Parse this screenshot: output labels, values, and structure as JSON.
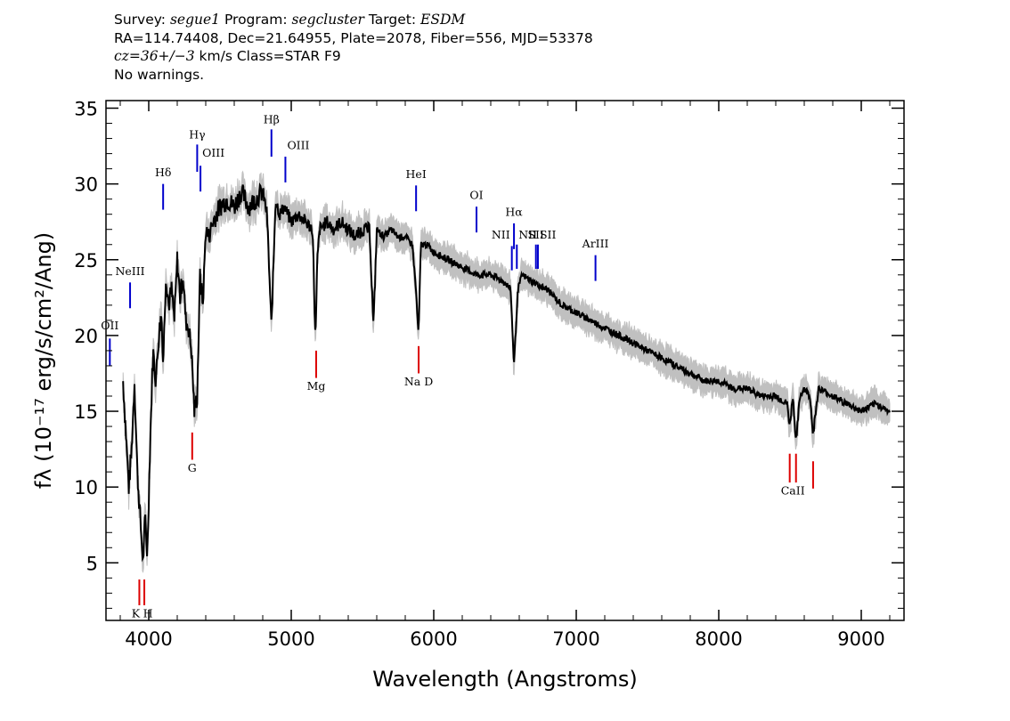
{
  "header": {
    "line1": {
      "survey_key": "Survey:",
      "survey_value": "segue1",
      "program_key": "Program:",
      "program_value": "segcluster",
      "target_key": "Target:",
      "target_value": "ESDM"
    },
    "line2": "RA=114.74408, Dec=21.64955, Plate=2078, Fiber=556, MJD=53378",
    "line3": {
      "cz_value": "cz=36+/−3",
      "cz_rest": " km/s Class=STAR F9"
    },
    "line4": "No warnings."
  },
  "chart_data": {
    "type": "line",
    "xlabel": "Wavelength (Angstroms)",
    "ylabel": "fλ (10⁻¹⁷ erg/s/cm²/Ang)",
    "xlim": [
      3700,
      9300
    ],
    "ylim": [
      1.2,
      35.5
    ],
    "x_ticks": [
      4000,
      5000,
      6000,
      7000,
      8000,
      9000
    ],
    "y_ticks": [
      5,
      10,
      15,
      20,
      25,
      30,
      35
    ],
    "grid": false,
    "colors": {
      "flux": "#000000",
      "error": "#c0c0c0",
      "emission": "#0000cc",
      "absorption": "#dd0000"
    },
    "series": [
      {
        "role": "flux",
        "x": [
          3820,
          3840,
          3860,
          3880,
          3900,
          3920,
          3940,
          3960,
          3975,
          3990,
          4010,
          4030,
          4050,
          4070,
          4090,
          4101,
          4120,
          4140,
          4160,
          4180,
          4200,
          4220,
          4240,
          4260,
          4280,
          4300,
          4320,
          4340,
          4360,
          4380,
          4400,
          4420,
          4450,
          4500,
          4550,
          4600,
          4650,
          4700,
          4750,
          4800,
          4830,
          4861,
          4890,
          4920,
          4950,
          5000,
          5050,
          5100,
          5150,
          5170,
          5183,
          5200,
          5250,
          5300,
          5350,
          5400,
          5450,
          5500,
          5550,
          5577,
          5600,
          5650,
          5700,
          5750,
          5800,
          5850,
          5875,
          5893,
          5910,
          5950,
          6000,
          6100,
          6200,
          6300,
          6400,
          6500,
          6540,
          6563,
          6590,
          6620,
          6700,
          6800,
          6900,
          7000,
          7100,
          7200,
          7300,
          7400,
          7500,
          7600,
          7700,
          7800,
          7900,
          8000,
          8100,
          8200,
          8300,
          8400,
          8480,
          8498,
          8520,
          8542,
          8570,
          8600,
          8640,
          8662,
          8700,
          8800,
          8900,
          9000,
          9100,
          9200
        ],
        "y": [
          17.0,
          13.5,
          10.0,
          12.5,
          17.0,
          11.0,
          8.0,
          5.0,
          8.0,
          5.5,
          13.0,
          19.0,
          17.0,
          20.0,
          21.5,
          18.0,
          24.0,
          22.0,
          23.0,
          21.0,
          25.0,
          22.5,
          24.0,
          21.0,
          20.5,
          19.0,
          15.0,
          16.0,
          24.0,
          22.0,
          27.0,
          26.5,
          27.5,
          28.5,
          29.0,
          28.5,
          29.5,
          28.5,
          29.0,
          29.5,
          28.0,
          20.5,
          29.0,
          28.0,
          28.5,
          27.5,
          28.0,
          27.5,
          27.0,
          19.5,
          25.0,
          27.0,
          27.5,
          27.0,
          27.5,
          27.0,
          26.5,
          27.0,
          27.0,
          20.5,
          27.0,
          26.5,
          27.0,
          26.5,
          26.5,
          26.0,
          23.0,
          20.0,
          26.0,
          26.0,
          25.5,
          25.0,
          24.5,
          24.0,
          24.0,
          23.5,
          23.0,
          18.0,
          23.0,
          24.0,
          23.5,
          23.0,
          22.0,
          21.5,
          21.0,
          20.5,
          20.0,
          19.5,
          19.0,
          18.5,
          18.0,
          17.5,
          17.0,
          17.0,
          16.5,
          16.5,
          16.0,
          16.0,
          15.5,
          14.0,
          16.0,
          13.0,
          16.0,
          16.5,
          16.0,
          13.5,
          16.5,
          16.0,
          15.5,
          15.0,
          15.5,
          15.0
        ]
      }
    ],
    "emission_lines": [
      {
        "label": "OII",
        "wavelength": 3727
      },
      {
        "label": "NeIII",
        "wavelength": 3869
      },
      {
        "label": "Hδ",
        "wavelength": 4101
      },
      {
        "label": "Hγ",
        "wavelength": 4340
      },
      {
        "label": "OIII",
        "wavelength": 4363
      },
      {
        "label": "Hβ",
        "wavelength": 4861
      },
      {
        "label": "OIII",
        "wavelength": 4959
      },
      {
        "label": "HeI",
        "wavelength": 5876
      },
      {
        "label": "OI",
        "wavelength": 6300
      },
      {
        "label": "NII",
        "wavelength": 6548
      },
      {
        "label": "Hα",
        "wavelength": 6563
      },
      {
        "label": "NII",
        "wavelength": 6583
      },
      {
        "label": "SII",
        "wavelength": 6717
      },
      {
        "label": "SII",
        "wavelength": 6731
      },
      {
        "label": "ArIII",
        "wavelength": 7135
      }
    ],
    "absorption_lines": [
      {
        "label": "K",
        "wavelength": 3934
      },
      {
        "label": "H",
        "wavelength": 3969
      },
      {
        "label": "G",
        "wavelength": 4305
      },
      {
        "label": "Mg",
        "wavelength": 5175
      },
      {
        "label": "Na D",
        "wavelength": 5894
      },
      {
        "label": "CaII",
        "wavelength": 8498
      },
      {
        "label": "CaII",
        "wavelength": 8542
      },
      {
        "label": "CaII",
        "wavelength": 8662
      }
    ]
  }
}
